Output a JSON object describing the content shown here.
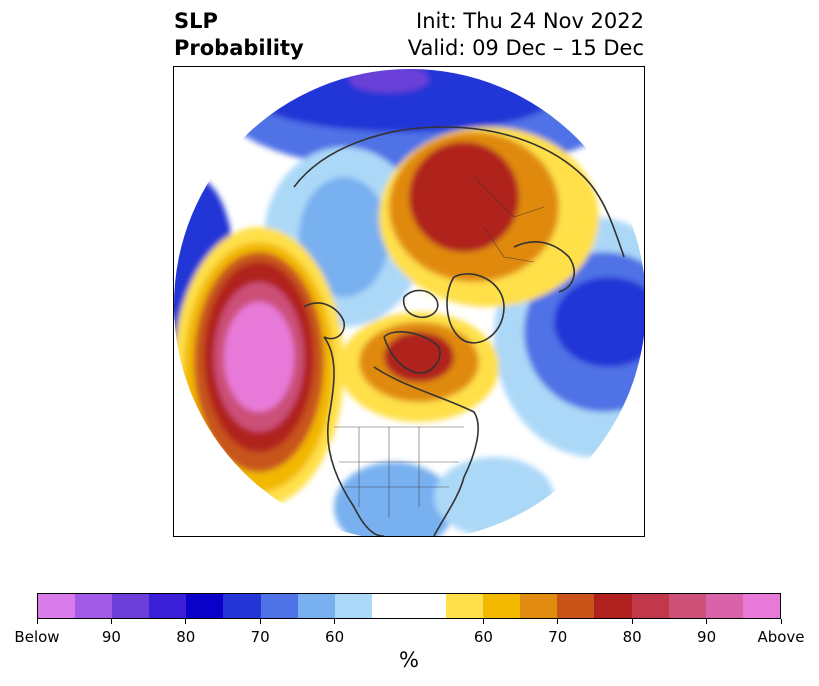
{
  "title": {
    "left_line1": "SLP",
    "left_line2": "Probability",
    "right_line1": "Init: Thu 24 Nov 2022",
    "right_line2": "Valid: 09 Dec – 15 Dec"
  },
  "colorbar": {
    "unit_label": "%",
    "colors": [
      "#d97be8",
      "#a15be6",
      "#6b3fd8",
      "#3a1fd6",
      "#0a00c8",
      "#2436d6",
      "#4f72e6",
      "#78b0f0",
      "#acd8f8",
      "#ffffff",
      "#ffffff",
      "#ffe04a",
      "#f2b800",
      "#e08a10",
      "#c8541a",
      "#b0201e",
      "#c0384a",
      "#cc5078",
      "#da62a8",
      "#e77ad8"
    ],
    "tick_labels": [
      "Below",
      "90",
      "80",
      "70",
      "60",
      "60",
      "70",
      "80",
      "90",
      "Above"
    ]
  },
  "map": {
    "projection": "polar-stereographic-north",
    "palette": {
      "deep_blue": "#0a00c8",
      "blue": "#2436d6",
      "mid_blue": "#4f72e6",
      "light_blue": "#78b0f0",
      "pale_blue": "#acd8f8",
      "purple": "#6b3fd8",
      "yellow": "#ffe04a",
      "gold": "#f2b800",
      "orange": "#e08a10",
      "rust": "#c8541a",
      "red": "#b0201e",
      "crimson": "#c0384a",
      "rose": "#cc5078",
      "pink": "#da62a8",
      "magenta": "#e77ad8",
      "coastline": "#333333"
    }
  }
}
